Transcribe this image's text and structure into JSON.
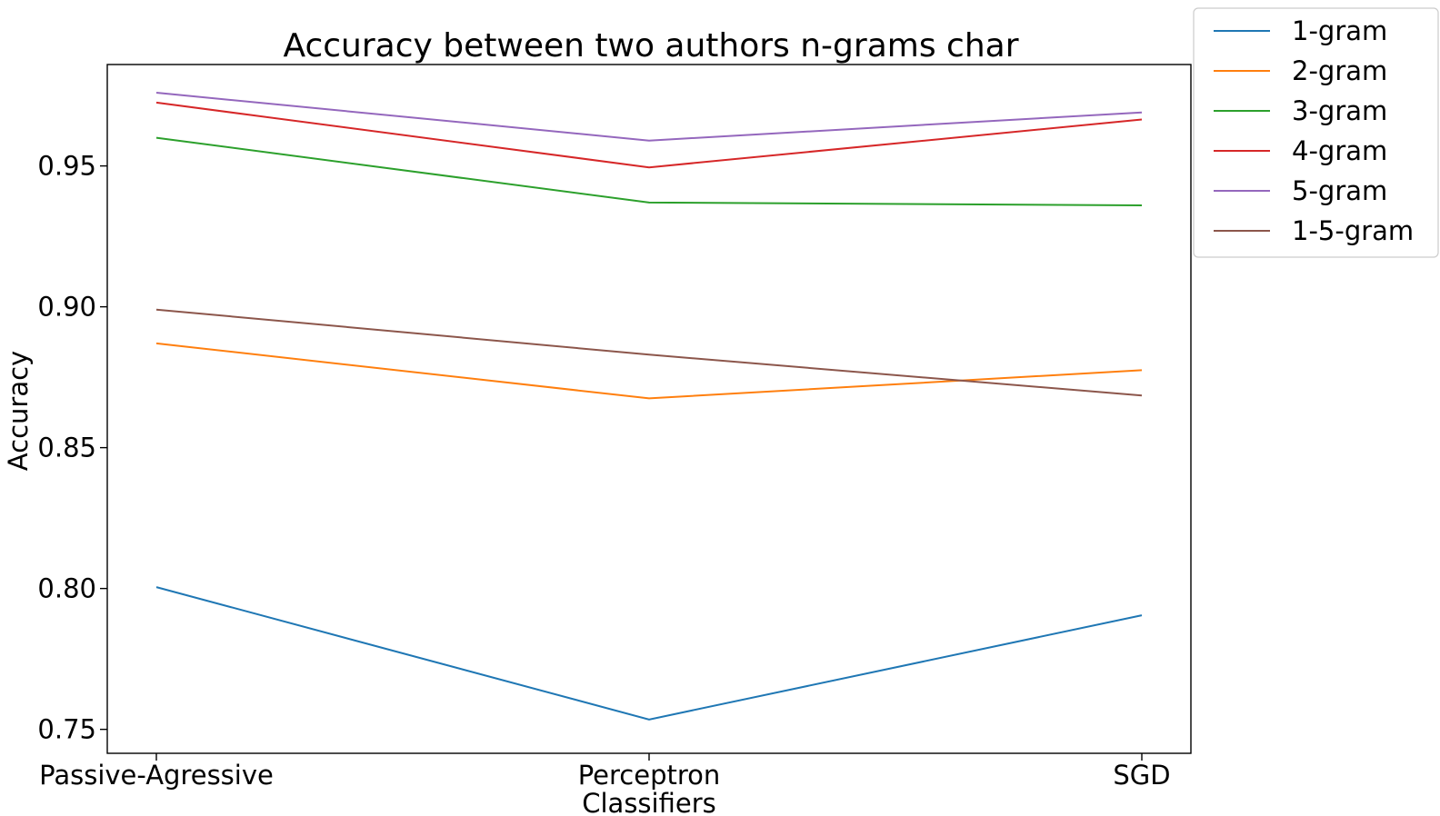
{
  "chart_data": {
    "type": "line",
    "title": "Accuracy between two authors n-grams char",
    "xlabel": "Classifiers",
    "ylabel": "Accuracy",
    "categories": [
      "Passive-Agressive",
      "Perceptron",
      "SGD"
    ],
    "ylim": [
      0.7415,
      0.986
    ],
    "yticks": [
      "0.75",
      "0.80",
      "0.85",
      "0.90",
      "0.95"
    ],
    "grid": false,
    "legend_position": "outside top-right",
    "series": [
      {
        "name": "1-gram",
        "color": "#1f77b4",
        "values": [
          0.8005,
          0.7535,
          0.7905
        ]
      },
      {
        "name": "2-gram",
        "color": "#ff7f0e",
        "values": [
          0.887,
          0.8675,
          0.8775
        ]
      },
      {
        "name": "3-gram",
        "color": "#2ca02c",
        "values": [
          0.96,
          0.937,
          0.936
        ]
      },
      {
        "name": "4-gram",
        "color": "#d62728",
        "values": [
          0.9725,
          0.9495,
          0.9665
        ]
      },
      {
        "name": "5-gram",
        "color": "#9467bd",
        "values": [
          0.976,
          0.959,
          0.969
        ]
      },
      {
        "name": "1-5-gram",
        "color": "#8c564b",
        "values": [
          0.899,
          0.883,
          0.8685
        ]
      }
    ]
  }
}
